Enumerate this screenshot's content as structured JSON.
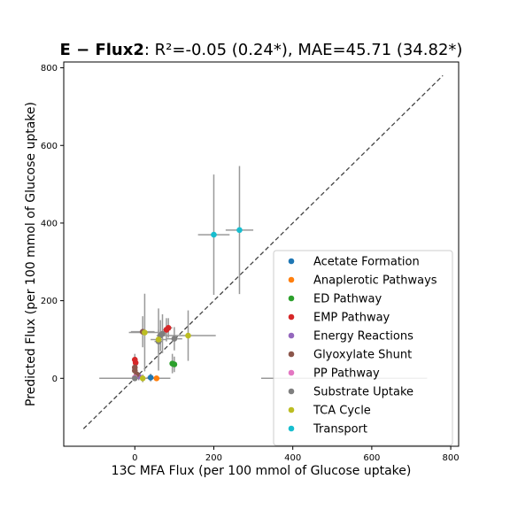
{
  "chart_data": {
    "type": "scatter",
    "title_bold": "E − Flux2",
    "title_rest": ": R²=-0.05 (0.24*), MAE=45.71 (34.82*)",
    "xlabel": "13C MFA Flux (per 100 mmol of Glucose uptake)",
    "ylabel": "Predicted Flux (per 100 mmol of Glucose uptake)",
    "xlim": [
      -180,
      820
    ],
    "ylim": [
      -175,
      815
    ],
    "xticks": [
      0,
      200,
      400,
      600,
      800
    ],
    "yticks": [
      0,
      200,
      400,
      600,
      800
    ],
    "diagonal": [
      -130,
      780
    ],
    "legend_position": "lower-right",
    "series": [
      {
        "name": "Acetate Formation",
        "color": "#1f77b4",
        "points": [
          {
            "x": 40,
            "y": 2,
            "xerr": 10,
            "yerr": 10
          }
        ]
      },
      {
        "name": "Anaplerotic Pathways",
        "color": "#ff7f0e",
        "points": [
          {
            "x": 55,
            "y": 0,
            "xerr": 8,
            "yerr": 5
          }
        ]
      },
      {
        "name": "ED Pathway",
        "color": "#2ca02c",
        "points": [
          {
            "x": 95,
            "y": 38,
            "xerr": 5,
            "yerr": 25
          },
          {
            "x": 100,
            "y": 36,
            "xerr": 5,
            "yerr": 20
          }
        ]
      },
      {
        "name": "EMP Pathway",
        "color": "#d62728",
        "points": [
          {
            "x": 85,
            "y": 130,
            "xerr": 10,
            "yerr": 25
          },
          {
            "x": 80,
            "y": 125,
            "xerr": 10,
            "yerr": 30
          },
          {
            "x": 0,
            "y": 48,
            "xerr": 5,
            "yerr": 15
          },
          {
            "x": 2,
            "y": 40,
            "xerr": 5,
            "yerr": 15
          }
        ]
      },
      {
        "name": "Energy Reactions",
        "color": "#9467bd",
        "points": [
          {
            "x": 10,
            "y": 5,
            "xerr": 10,
            "yerr": 10
          }
        ]
      },
      {
        "name": "Glyoxylate Shunt",
        "color": "#8c564b",
        "points": [
          {
            "x": 20,
            "y": 120,
            "xerr": 30,
            "yerr": 40
          },
          {
            "x": 0,
            "y": 28,
            "xerr": 5,
            "yerr": 10
          },
          {
            "x": 0,
            "y": 20,
            "xerr": 5,
            "yerr": 10
          },
          {
            "x": 5,
            "y": 10,
            "xerr": 5,
            "yerr": 10
          }
        ]
      },
      {
        "name": "PP Pathway",
        "color": "#e377c2",
        "points": [
          {
            "x": 0,
            "y": 2,
            "xerr": 5,
            "yerr": 5
          }
        ]
      },
      {
        "name": "Substrate Uptake",
        "color": "#7f7f7f",
        "points": [
          {
            "x": 100,
            "y": 102,
            "xerr": 20,
            "yerr": 30
          },
          {
            "x": 60,
            "y": 95,
            "xerr": 10,
            "yerr": 30
          },
          {
            "x": 65,
            "y": 110,
            "xerr": 10,
            "yerr": 40
          },
          {
            "x": 70,
            "y": 115,
            "xerr": 10,
            "yerr": 50
          },
          {
            "x": 0,
            "y": 0,
            "xerr": 5,
            "yerr": 5
          }
        ]
      },
      {
        "name": "TCA Cycle",
        "color": "#bcbd22",
        "points": [
          {
            "x": 135,
            "y": 110,
            "xerr": 70,
            "yerr": 65
          },
          {
            "x": 25,
            "y": 118,
            "xerr": 40,
            "yerr": 100
          },
          {
            "x": 60,
            "y": 100,
            "xerr": 20,
            "yerr": 80
          },
          {
            "x": 20,
            "y": 0,
            "xerr": 10,
            "yerr": 10
          }
        ]
      },
      {
        "name": "Transport",
        "color": "#17becf",
        "points": [
          {
            "x": 200,
            "y": 370,
            "xerr": 40,
            "yerr": 155
          },
          {
            "x": 265,
            "y": 382,
            "xerr": 35,
            "yerr": 165
          }
        ]
      }
    ],
    "wide_xerr_points": [
      {
        "x": 0,
        "y": 0,
        "xerr": 90
      },
      {
        "x": 530,
        "y": 0,
        "xerr": 210
      }
    ]
  }
}
